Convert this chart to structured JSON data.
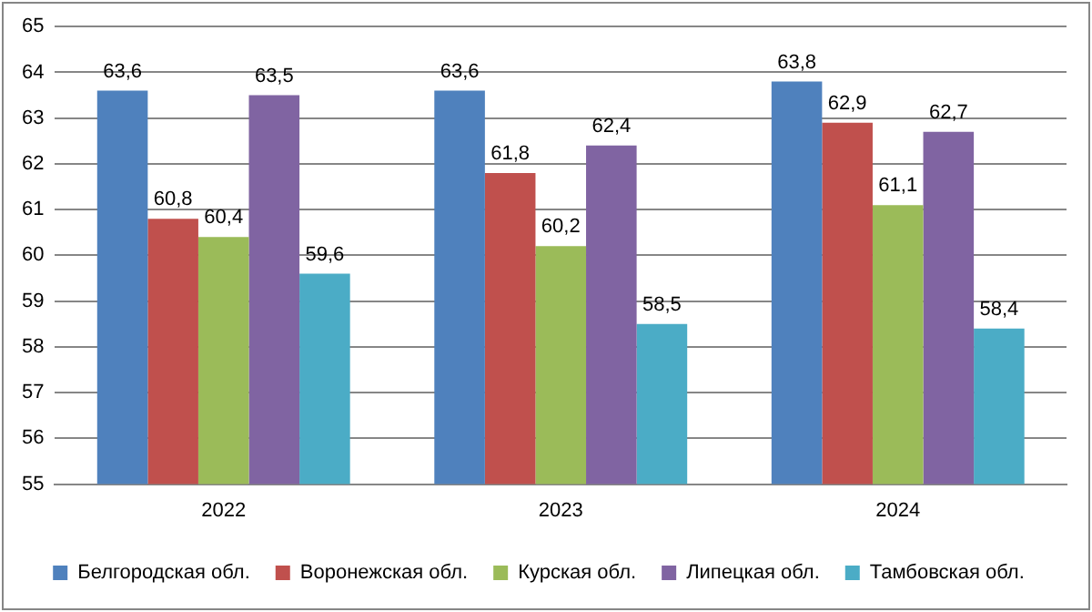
{
  "chart_data": {
    "type": "bar",
    "categories": [
      "2022",
      "2023",
      "2024"
    ],
    "series": [
      {
        "name": "Белгородская обл.",
        "color": "#4f81bd",
        "values": [
          63.6,
          63.6,
          63.8
        ],
        "value_labels": [
          "63,6",
          "63,6",
          "63,8"
        ]
      },
      {
        "name": "Воронежская обл.",
        "color": "#c0504d",
        "values": [
          60.8,
          61.8,
          62.9
        ],
        "value_labels": [
          "60,8",
          "61,8",
          "62,9"
        ]
      },
      {
        "name": "Курская обл.",
        "color": "#9bbb59",
        "values": [
          60.4,
          60.2,
          61.1
        ],
        "value_labels": [
          "60,4",
          "60,2",
          "61,1"
        ]
      },
      {
        "name": "Липецкая обл.",
        "color": "#8064a2",
        "values": [
          63.5,
          62.4,
          62.7
        ],
        "value_labels": [
          "63,5",
          "62,4",
          "62,7"
        ]
      },
      {
        "name": "Тамбовская обл.",
        "color": "#4bacc6",
        "values": [
          59.6,
          58.5,
          58.4
        ],
        "value_labels": [
          "59,6",
          "58,5",
          "58,4"
        ]
      }
    ],
    "ylim": [
      55,
      65
    ],
    "yticks": [
      55,
      56,
      57,
      58,
      59,
      60,
      61,
      62,
      63,
      64,
      65
    ],
    "grid": "y",
    "legend": "bottom"
  }
}
